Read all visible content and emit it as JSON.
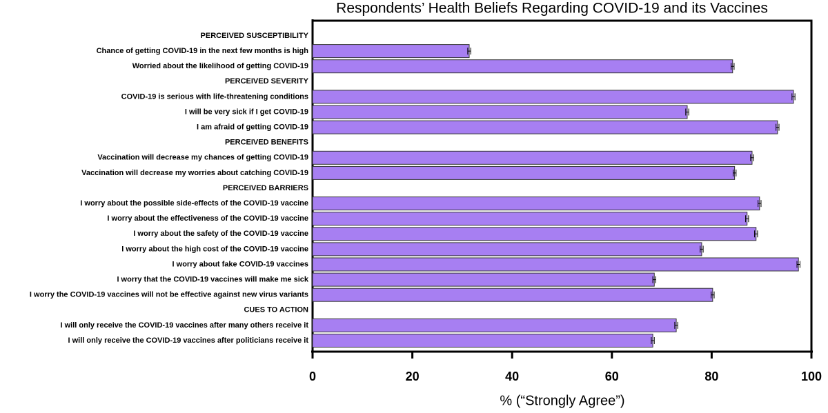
{
  "chart_data": {
    "type": "bar",
    "orientation": "horizontal",
    "title": "Respondents’ Health Beliefs Regarding COVID-19 and its Vaccines",
    "x_label": "% (“Strongly Agree”)",
    "categories": [
      "PERCEIVED SUSCEPTIBILITY",
      "Chance of getting COVID-19 in the next few months is high",
      "Worried about the likelihood of getting COVID-19",
      "PERCEIVED SEVERITY",
      "COVID-19 is serious with life-threatening conditions",
      "I will be very sick if I get COVID-19",
      "I am afraid of getting COVID-19",
      "PERCEIVED BENEFITS",
      "Vaccination will decrease my chances of getting COVID-19",
      "Vaccination will decrease my worries about catching COVID-19",
      "PERCEIVED BARRIERS",
      "I worry about the possible side-effects of the COVID-19 vaccine",
      "I worry about the effectiveness of the COVID-19 vaccine",
      "I worry about the safety of the COVID-19 vaccine",
      "I worry about the high cost of the COVID-19 vaccine",
      "I worry about fake COVID-19 vaccines",
      "I worry that the COVID-19 vaccines will make me sick",
      "I worry the COVID-19 vaccines will not be effective against new virus variants",
      "CUES TO ACTION",
      "I will only receive the COVID-19 vaccines after many others receive it",
      "I will only receive the COVID-19 vaccines after politicians receive it"
    ],
    "values": [
      null,
      31.4,
      84.2,
      null,
      96.4,
      75.1,
      93.2,
      null,
      88.1,
      84.6,
      null,
      89.6,
      87.1,
      88.9,
      78.0,
      97.4,
      68.5,
      80.2,
      null,
      72.9,
      68.2
    ],
    "errors": [
      null,
      0.3,
      0.3,
      null,
      0.3,
      0.3,
      0.3,
      null,
      0.3,
      0.3,
      null,
      0.3,
      0.3,
      0.3,
      0.3,
      0.3,
      0.3,
      0.3,
      null,
      0.3,
      0.3
    ],
    "color": "#a77ff2",
    "xlim": [
      0,
      100
    ],
    "xticks": [
      0,
      20,
      40,
      60,
      80,
      100
    ],
    "grid": false
  }
}
